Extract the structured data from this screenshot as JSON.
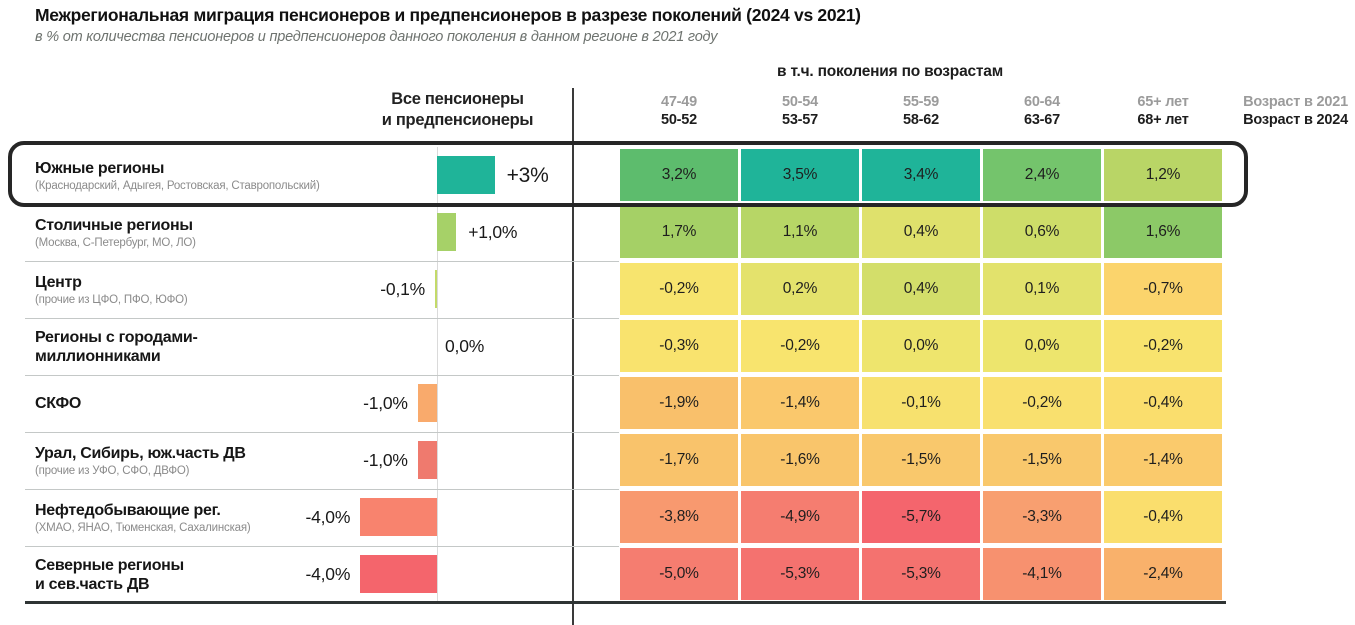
{
  "chart_data": {
    "type": "heatmap",
    "title": "Межрегиональная миграция пенсионеров и предпенсионеров в разрезе поколений (2024 vs 2021)",
    "subtitle": "в % от количества пенсионеров и предпенсионеров данного поколения в данном регионе в 2021 году",
    "group_header": "в т.ч. поколения по возрастам",
    "total_column_label": [
      "Все пенсионеры",
      "и предпенсионеры"
    ],
    "legend": {
      "age_in_2021": "Возраст в 2021",
      "age_in_2024": "Возраст в 2024"
    },
    "columns": [
      {
        "age_2021": "47-49",
        "age_2024": "50-52"
      },
      {
        "age_2021": "50-54",
        "age_2024": "53-57"
      },
      {
        "age_2021": "55-59",
        "age_2024": "58-62"
      },
      {
        "age_2021": "60-64",
        "age_2024": "63-67"
      },
      {
        "age_2021": "65+ лет",
        "age_2024": "68+ лет"
      }
    ],
    "rows": [
      {
        "region": "Южные регионы",
        "note": "(Краснодарский, Адыгея, Ростовская, Ставропольский)",
        "highlighted": true,
        "total_value": 3.0,
        "total_label": "+3%",
        "bar_color": "#1fb499",
        "values": [
          3.2,
          3.5,
          3.4,
          2.4,
          1.2
        ],
        "cell_labels": [
          "3,2%",
          "3,5%",
          "3,4%",
          "2,4%",
          "1,2%"
        ],
        "cell_colors": [
          "#5dbc6d",
          "#1fb499",
          "#1fb499",
          "#74c46c",
          "#b9d566"
        ]
      },
      {
        "region": "Столичные регионы",
        "note": "(Москва, С-Петербург, МО, ЛО)",
        "highlighted": false,
        "total_value": 1.0,
        "total_label": "+1,0%",
        "bar_color": "#a6d168",
        "values": [
          1.7,
          1.1,
          0.4,
          0.6,
          1.6
        ],
        "cell_labels": [
          "1,7%",
          "1,1%",
          "0,4%",
          "0,6%",
          "1,6%"
        ],
        "cell_colors": [
          "#a5d066",
          "#b7d666",
          "#dfe16c",
          "#cedd69",
          "#8cc967"
        ]
      },
      {
        "region": "Центр",
        "note": "(прочие из ЦФО, ПФО, ЮФО)",
        "highlighted": false,
        "total_value": -0.1,
        "total_label": "-0,1%",
        "bar_color": "#c3da69",
        "values": [
          -0.2,
          0.2,
          0.4,
          0.1,
          -0.7
        ],
        "cell_labels": [
          "-0,2%",
          "0,2%",
          "0,4%",
          "0,1%",
          "-0,7%"
        ],
        "cell_colors": [
          "#f7e46e",
          "#e4e26c",
          "#d3de6a",
          "#e2e26c",
          "#fbd46c"
        ]
      },
      {
        "region": "Регионы с городами-",
        "region_line2": "миллионниками",
        "highlighted": false,
        "total_value": 0.0,
        "total_label": "0,0%",
        "bar_color": null,
        "values": [
          -0.3,
          -0.2,
          0.0,
          0.0,
          -0.2
        ],
        "cell_labels": [
          "-0,3%",
          "-0,2%",
          "0,0%",
          "0,0%",
          "-0,2%"
        ],
        "cell_colors": [
          "#f9e36e",
          "#f8e46e",
          "#eee56d",
          "#ede56d",
          "#f8e36e"
        ]
      },
      {
        "region": "СКФО",
        "highlighted": false,
        "total_value": -1.0,
        "total_label": "-1,0%",
        "bar_color": "#f9aa6c",
        "values": [
          -1.9,
          -1.4,
          -0.1,
          -0.2,
          -0.4
        ],
        "cell_labels": [
          "-1,9%",
          "-1,4%",
          "-0,1%",
          "-0,2%",
          "-0,4%"
        ],
        "cell_colors": [
          "#f9c06b",
          "#fac86c",
          "#f7e16e",
          "#f9e06e",
          "#fade6d"
        ]
      },
      {
        "region": "Урал, Сибирь, юж.часть ДВ",
        "note": "(прочие из УФО, СФО, ДВФО)",
        "highlighted": false,
        "total_value": -1.0,
        "total_label": "-1,0%",
        "bar_color": "#ef7a6e",
        "values": [
          -1.7,
          -1.6,
          -1.5,
          -1.5,
          -1.4
        ],
        "cell_labels": [
          "-1,7%",
          "-1,6%",
          "-1,5%",
          "-1,5%",
          "-1,4%"
        ],
        "cell_colors": [
          "#f9c36b",
          "#f9c56b",
          "#f9c86c",
          "#f9c86c",
          "#faca6c"
        ]
      },
      {
        "region": "Нефтедобывающие рег.",
        "note": "(ХМАО, ЯНАО, Тюменская, Сахалинская)",
        "highlighted": false,
        "total_value": -4.0,
        "total_label": "-4,0%",
        "bar_color": "#f8836e",
        "values": [
          -3.8,
          -4.9,
          -5.7,
          -3.3,
          -0.4
        ],
        "cell_labels": [
          "-3,8%",
          "-4,9%",
          "-5,7%",
          "-3,3%",
          "-0,4%"
        ],
        "cell_colors": [
          "#f8996f",
          "#f57d70",
          "#f4656d",
          "#f89f70",
          "#fade6d"
        ]
      },
      {
        "region": "Северные регионы",
        "region_line2": "и сев.часть ДВ",
        "highlighted": false,
        "total_value": -4.0,
        "total_label": "-4,0%",
        "bar_color": "#f4656c",
        "values": [
          -5.0,
          -5.3,
          -5.3,
          -4.1,
          -2.4
        ],
        "cell_labels": [
          "-5,0%",
          "-5,3%",
          "-5,3%",
          "-4,1%",
          "-2,4%"
        ],
        "cell_colors": [
          "#f57d70",
          "#f4726f",
          "#f4726f",
          "#f7916f",
          "#f9b16b"
        ]
      }
    ]
  }
}
